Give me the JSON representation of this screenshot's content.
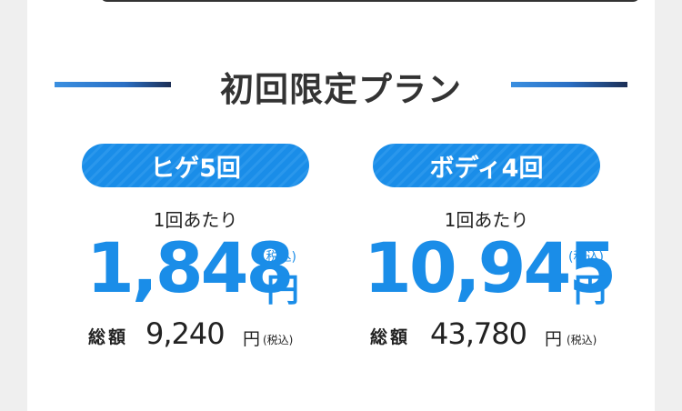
{
  "section_title": "初回限定プラン",
  "plans": [
    {
      "name": "ヒゲ5回",
      "per_label": "1回あたり",
      "price": "1,848",
      "currency": "円",
      "tax_note": "(税込)",
      "total_label": "総額",
      "total_value": "9,240",
      "total_currency": "円",
      "total_tax_note": "(税込)"
    },
    {
      "name": "ボディ4回",
      "per_label": "1回あたり",
      "price": "10,945",
      "currency": "円",
      "tax_note": "(税込)",
      "total_label": "総額",
      "total_value": "43,780",
      "total_currency": "円",
      "total_tax_note": "(税込)"
    }
  ],
  "colors": {
    "accent": "#1a8de8",
    "text": "#222222",
    "title": "#333333"
  }
}
